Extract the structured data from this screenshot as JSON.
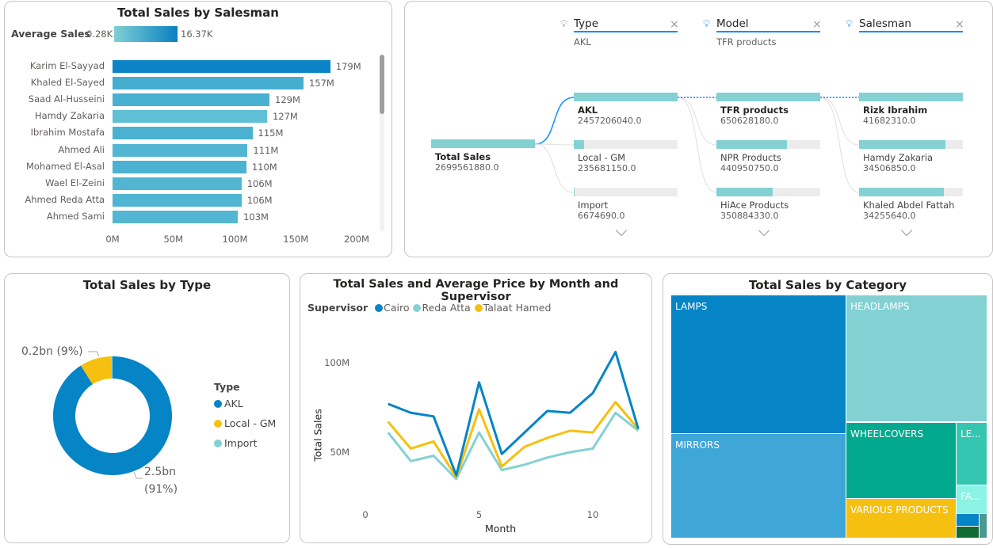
{
  "salesman_chart": {
    "title": "Total Sales by Salesman",
    "legend_label": "Average Sales",
    "legend_min": "0.28K",
    "legend_max": "16.37K",
    "gradient": [
      "#7fd0d3",
      "#0a7fc2"
    ],
    "chart_data": {
      "type": "bar",
      "orientation": "horizontal",
      "categories": [
        "Karim El-Sayyad",
        "Khaled El-Sayed",
        "Saad Al-Husseini",
        "Hamdy Zakaria",
        "Ibrahim Mostafa",
        "Ahmed Ali",
        "Mohamed El-Asal",
        "Wael El-Zeini",
        "Ahmed Reda Atta",
        "Ahmed Sami"
      ],
      "values": [
        179,
        157,
        129,
        127,
        115,
        111,
        110,
        106,
        106,
        103
      ],
      "labels": [
        "179M",
        "157M",
        "129M",
        "127M",
        "115M",
        "111M",
        "110M",
        "106M",
        "106M",
        "103M"
      ],
      "colors": [
        "#0a84c6",
        "#45aed0",
        "#48b0d1",
        "#5fbfd4",
        "#4ab1d1",
        "#52b6d3",
        "#4bb2d2",
        "#52b6d3",
        "#50b5d3",
        "#53b7d3"
      ],
      "xlim": [
        0,
        200
      ],
      "xticks": [
        "0M",
        "50M",
        "100M",
        "150M",
        "200M"
      ]
    }
  },
  "decomposition": {
    "total": {
      "label": "Total Sales",
      "value": "2699561880.0"
    },
    "levels": [
      {
        "field": "Type",
        "selected": "AKL",
        "items": [
          {
            "label": "AKL",
            "value": "2457206040.0",
            "fill": 1,
            "bold": true
          },
          {
            "label": "Local - GM",
            "value": "235681150.0",
            "fill": 0.1
          },
          {
            "label": "Import",
            "value": "6674690.0",
            "fill": 0.003
          }
        ]
      },
      {
        "field": "Model",
        "selected": "TFR products",
        "items": [
          {
            "label": "TFR products",
            "value": "650628180.0",
            "fill": 1,
            "bold": true
          },
          {
            "label": "NPR Products",
            "value": "440950750.0",
            "fill": 0.68
          },
          {
            "label": "HiAce Products",
            "value": "350884330.0",
            "fill": 0.54
          }
        ]
      },
      {
        "field": "Salesman",
        "selected": "",
        "items": [
          {
            "label": "Rizk Ibrahim",
            "value": "41682310.0",
            "fill": 1,
            "bold": true
          },
          {
            "label": "Hamdy Zakaria",
            "value": "34506850.0",
            "fill": 0.83
          },
          {
            "label": "Khaled Abdel Fattah",
            "value": "34255640.0",
            "fill": 0.82
          }
        ]
      }
    ],
    "bar_color": "#84d1d4",
    "accent": "#118dff"
  },
  "type_chart": {
    "title": "Total Sales by Type",
    "legend_title": "Type",
    "label_small": "0.2bn (9%)",
    "label_big_1": "2.5bn",
    "label_big_2": "(91%)",
    "chart_data": {
      "type": "pie",
      "donut": true,
      "categories": [
        "AKL",
        "Local - GM",
        "Import"
      ],
      "values": [
        2457206040,
        235681150,
        6674690
      ],
      "colors": [
        "#0584c6",
        "#f6c010",
        "#84d1d4"
      ]
    }
  },
  "line_chart": {
    "title": "Total Sales and Average Price by Month and Supervisor",
    "legend_title": "Supervisor",
    "ylabel": "Total Sales",
    "xlabel": "Month",
    "yticks": [
      "100M",
      "50M"
    ],
    "xticks": [
      "0",
      "5",
      "10"
    ],
    "chart_data": {
      "type": "line",
      "x": [
        1,
        2,
        3,
        4,
        5,
        6,
        7,
        8,
        9,
        10,
        11,
        12
      ],
      "xlim": [
        0,
        12
      ],
      "ylim_unit": "M",
      "series": [
        {
          "name": "Cairo",
          "color": "#0584c6",
          "values": [
            77,
            72,
            70,
            37,
            89,
            49,
            61,
            73,
            72,
            83,
            106,
            63
          ]
        },
        {
          "name": "Reda Atta",
          "color": "#84d1d4",
          "values": [
            61,
            45,
            48,
            35,
            61,
            40,
            43,
            47,
            50,
            52,
            72,
            62
          ]
        },
        {
          "name": "Talaat Hamed",
          "color": "#f6c010",
          "values": [
            67,
            52,
            56,
            36,
            74,
            42,
            53,
            58,
            62,
            61,
            78,
            63
          ]
        }
      ]
    }
  },
  "treemap": {
    "title": "Total Sales by Category",
    "chart_data": {
      "type": "treemap",
      "categories": [
        {
          "label": "LAMPS",
          "color": "#0584c6"
        },
        {
          "label": "MIRRORS",
          "color": "#3fa6d8"
        },
        {
          "label": "HEADLAMPS",
          "color": "#84d1d4"
        },
        {
          "label": "WHEELCOVERS",
          "color": "#02a98f"
        },
        {
          "label": "VARIOUS PRODUCTS",
          "color": "#f6c010"
        },
        {
          "label": "LE...",
          "color": "#35c6b1"
        },
        {
          "label": "FA...",
          "color": "#8af3e3"
        },
        {
          "label": "",
          "color": "#0584c6"
        },
        {
          "label": "",
          "color": "#136b34"
        },
        {
          "label": "",
          "color": "#4a9990"
        }
      ]
    }
  }
}
